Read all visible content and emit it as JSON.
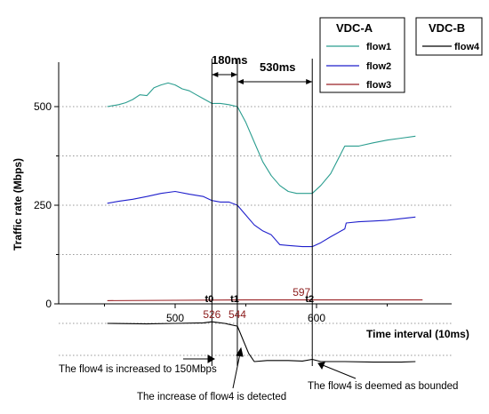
{
  "chart_data": {
    "type": "line",
    "ylabel": "Traffic rate (Mbps)",
    "xlabel": "Time interval (10ms)",
    "x_ticks": [
      500,
      600
    ],
    "y_ticks": [
      0,
      250,
      500
    ],
    "xlim": [
      452,
      675
    ],
    "ylim": [
      0,
      610
    ],
    "grid": "dotted horizontal",
    "legend_a": {
      "title": "VDC-A",
      "entries": [
        "flow1",
        "flow2",
        "flow3"
      ]
    },
    "legend_b": {
      "title": "VDC-B",
      "entries": [
        "flow4"
      ]
    },
    "series": [
      {
        "name": "flow1",
        "color": "#2a9d8f",
        "panel": "top",
        "x": [
          452,
          460,
          465,
          470,
          475,
          480,
          485,
          490,
          495,
          500,
          505,
          510,
          515,
          520,
          526,
          532,
          538,
          544,
          550,
          556,
          562,
          568,
          574,
          580,
          586,
          592,
          597,
          603,
          610,
          620,
          630,
          640,
          650,
          660,
          670
        ],
        "y": [
          500,
          505,
          510,
          518,
          530,
          528,
          548,
          555,
          560,
          555,
          545,
          540,
          530,
          520,
          508,
          508,
          505,
          500,
          460,
          410,
          360,
          325,
          300,
          285,
          280,
          280,
          280,
          300,
          330,
          400,
          400,
          408,
          415,
          420,
          425
        ]
      },
      {
        "name": "flow2",
        "color": "#1f1fcc",
        "panel": "top",
        "x": [
          452,
          460,
          470,
          480,
          490,
          500,
          510,
          520,
          526,
          532,
          538,
          544,
          550,
          556,
          562,
          568,
          574,
          580,
          590,
          597,
          603,
          610,
          620,
          621,
          630,
          640,
          650,
          660,
          670
        ],
        "y": [
          255,
          260,
          265,
          272,
          280,
          285,
          278,
          272,
          262,
          258,
          258,
          250,
          225,
          200,
          185,
          175,
          150,
          148,
          145,
          145,
          155,
          170,
          190,
          205,
          208,
          210,
          212,
          216,
          220
        ]
      },
      {
        "name": "flow3",
        "color": "#9b2226",
        "panel": "top",
        "x": [
          452,
          500,
          550,
          600,
          650,
          675
        ],
        "y": [
          8,
          9,
          10,
          10,
          10,
          10
        ]
      },
      {
        "name": "flow4",
        "color": "#000000",
        "panel": "bottom",
        "x": [
          452,
          480,
          500,
          520,
          526,
          535,
          544,
          548,
          552,
          556,
          565,
          580,
          590,
          597,
          603,
          620,
          640,
          660,
          670
        ],
        "y": [
          100,
          99,
          100,
          101,
          103,
          100,
          95,
          70,
          45,
          30,
          32,
          32,
          31,
          34,
          30,
          30,
          29,
          29,
          30
        ]
      }
    ],
    "markers": [
      {
        "x": 526,
        "label": "t0",
        "value_label": "526"
      },
      {
        "x": 544,
        "label": "t1",
        "value_label": "544"
      },
      {
        "x": 597,
        "label": "t2",
        "value_label": "597"
      }
    ],
    "intervals": [
      {
        "from": 526,
        "to": 544,
        "label": "180ms"
      },
      {
        "from": 544,
        "to": 597,
        "label": "530ms"
      }
    ],
    "annotations": [
      "The flow4 is increased to 150Mbps",
      "The increase of flow4 is detected",
      "The flow4 is deemed as bounded"
    ]
  }
}
